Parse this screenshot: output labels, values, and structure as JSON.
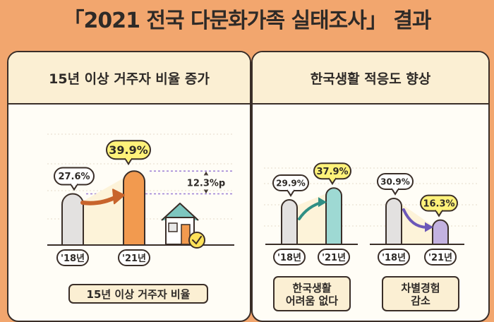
{
  "title": "「2021 전국 다문화가족 실태조사」 결과",
  "left_panel": {
    "header": "15년 이상 거주자 비율 증가",
    "footer_label": "15년 이상 거주자 비율",
    "change_label": "12.3%p"
  },
  "right_panel": {
    "header": "한국생활 적응도 향상"
  },
  "colors": {
    "background": "#F2A66E",
    "bar_before": "#E3E1E0",
    "bar_after_orange": "#F29A4F",
    "bar_after_teal": "#9ED9D3",
    "bar_after_purple": "#C3B2E0",
    "bubble_yellow": "#FFF27A",
    "header_fill": "#FBEFD3"
  },
  "chart_data": [
    {
      "type": "bar",
      "title": "15년 이상 거주자 비율",
      "categories": [
        "'18년",
        "'21년"
      ],
      "values": [
        27.6,
        39.9
      ],
      "value_labels": [
        "27.6%",
        "39.9%"
      ]
    },
    {
      "type": "bar",
      "title": "한국생활 어려움 없다",
      "categories": [
        "'18년",
        "'21년"
      ],
      "values": [
        29.9,
        37.9
      ],
      "value_labels": [
        "29.9%",
        "37.9%"
      ]
    },
    {
      "type": "bar",
      "title": "차별경험 감소",
      "categories": [
        "'18년",
        "'21년"
      ],
      "values": [
        30.9,
        16.3
      ],
      "value_labels": [
        "30.9%",
        "16.3%"
      ]
    }
  ],
  "icons": [
    "house-icon",
    "check-icon",
    "growth-arrow-icon",
    "decline-arrow-icon"
  ]
}
